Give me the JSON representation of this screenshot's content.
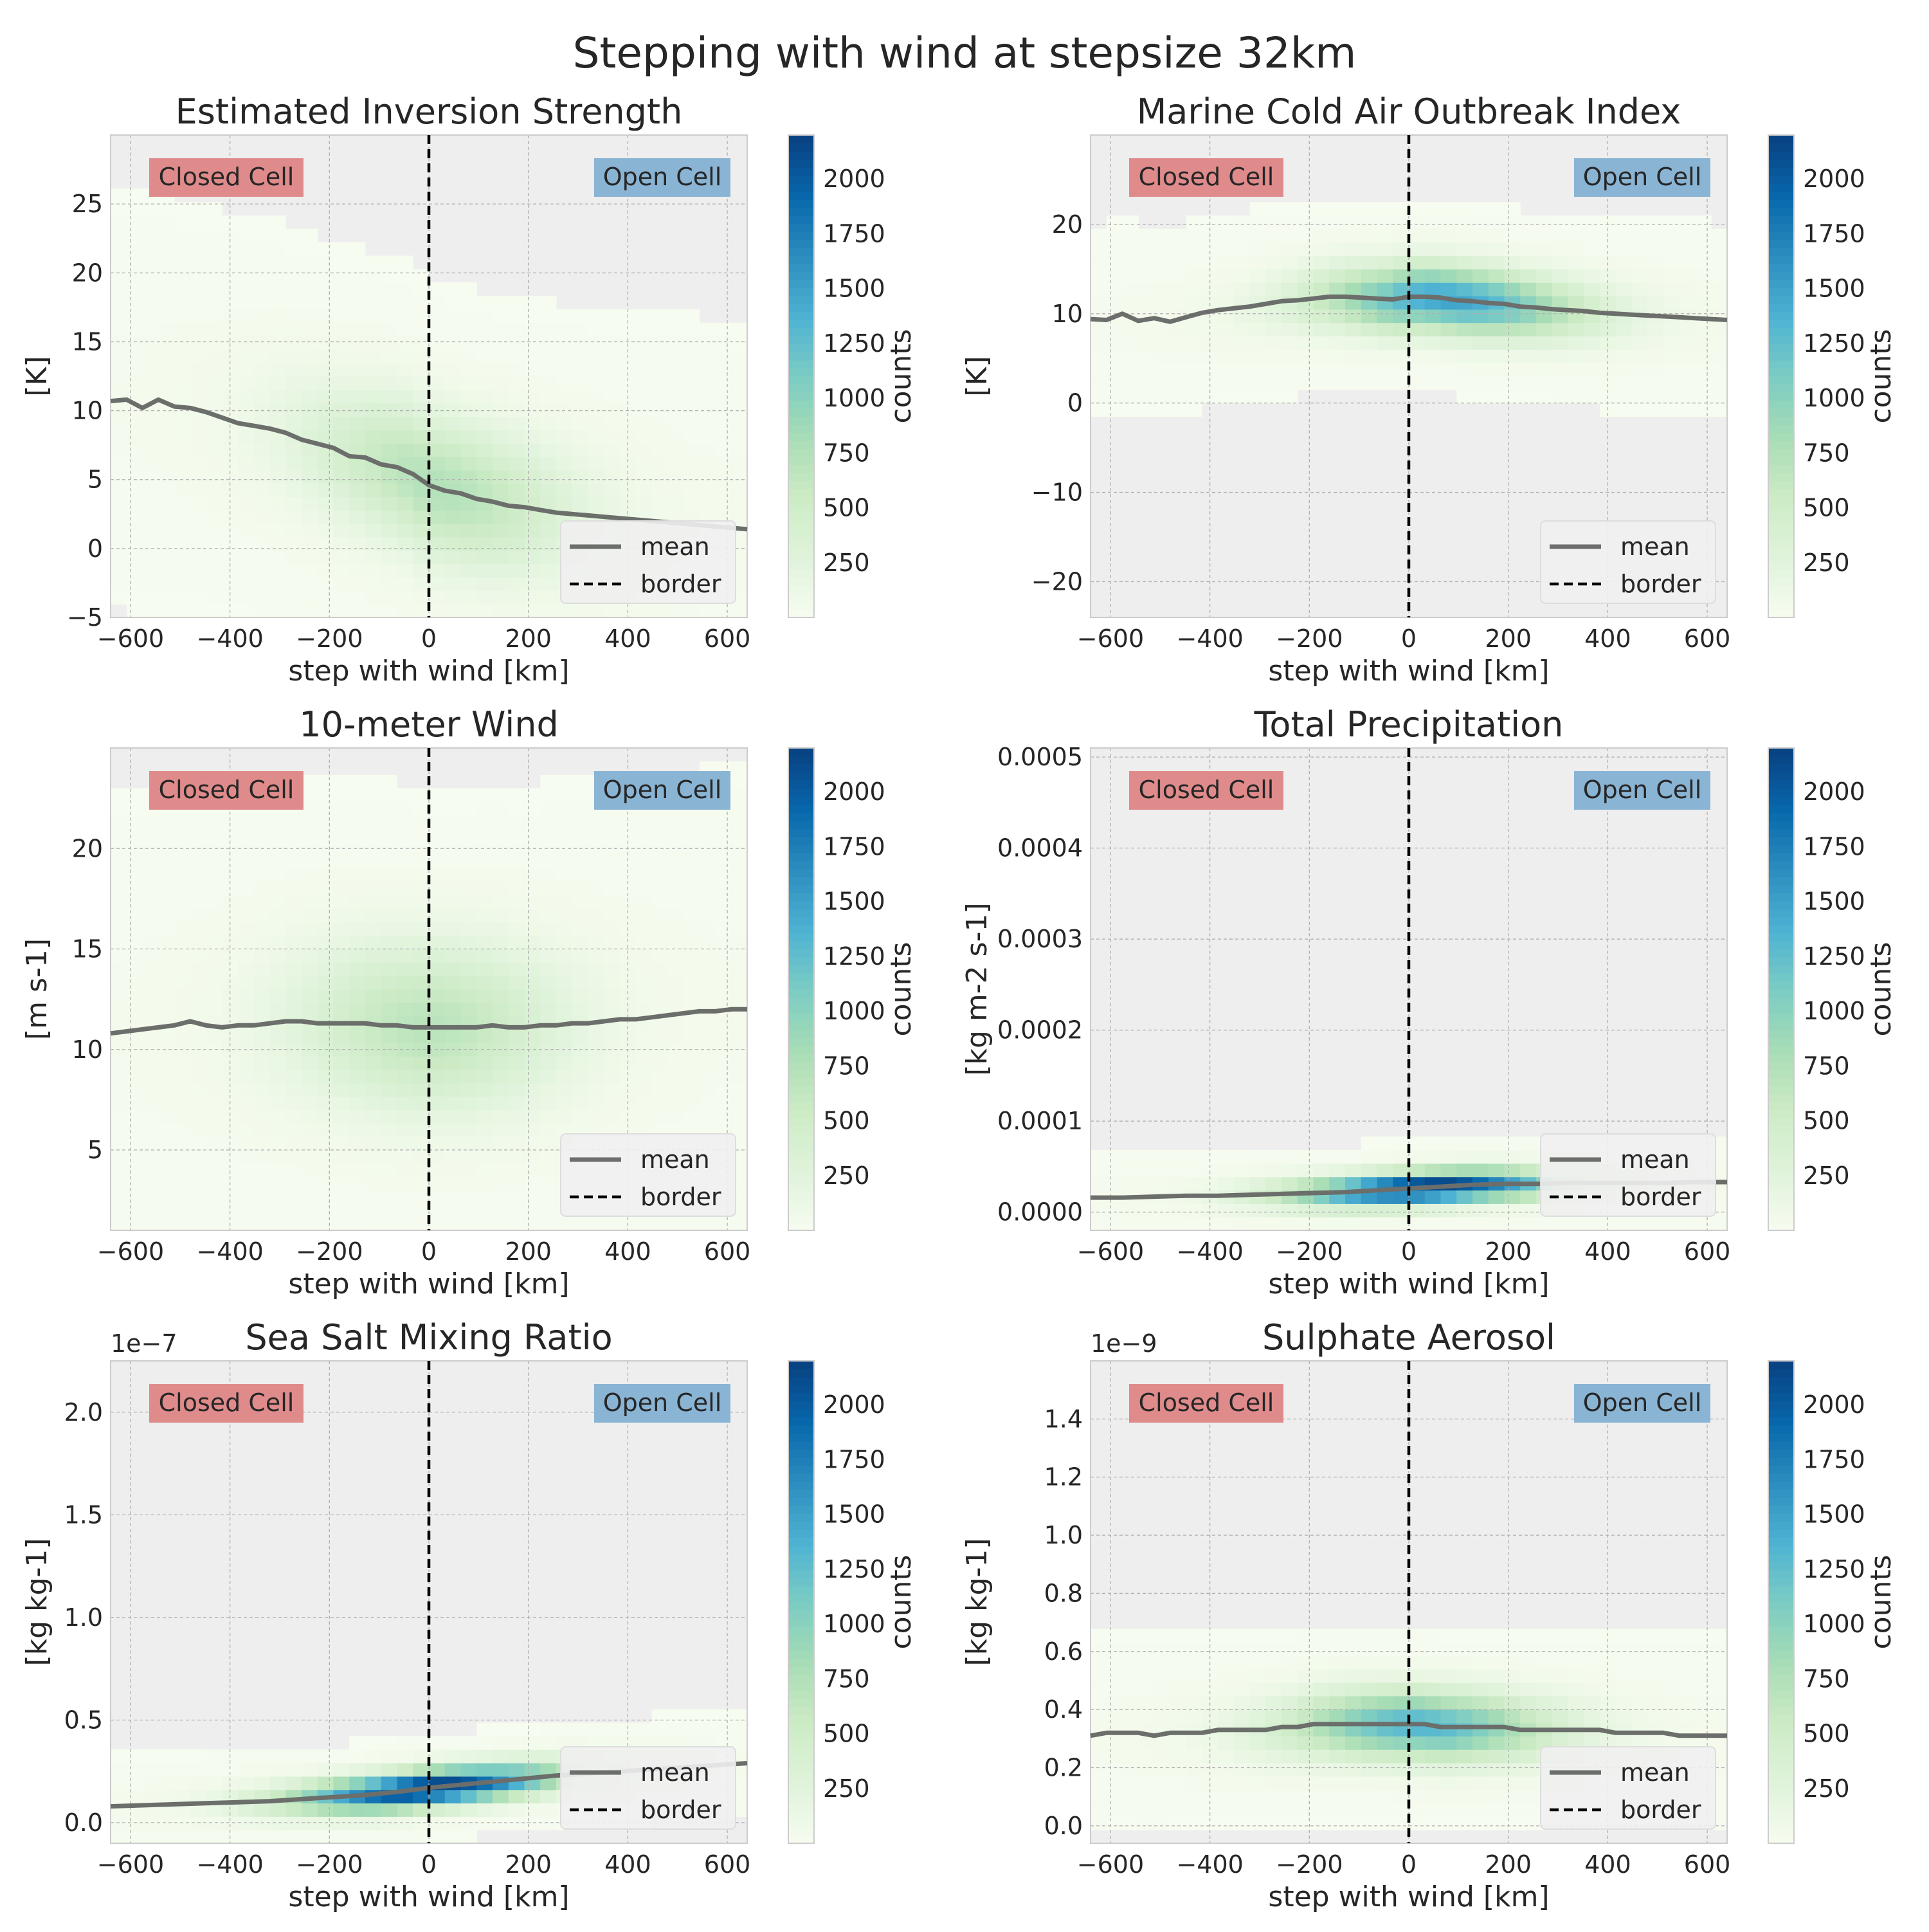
{
  "figure": {
    "suptitle": "Stepping with wind at stepsize 32km"
  },
  "labels": {
    "closed": "Closed Cell",
    "open": "Open Cell",
    "legend_mean": "mean",
    "legend_border": "border",
    "colorbar_label": "counts",
    "xlabel": "step with wind [km]"
  },
  "colors": {
    "closed_box": "#e08b8b",
    "open_box": "#8ab4d4",
    "mean_line": "#6b6e6b",
    "border_line": "#000000",
    "axes_bg": "#eeeeee",
    "colormap": "GnBu"
  },
  "colorbar": {
    "min": 0,
    "max": 2200,
    "ticks": [
      250,
      500,
      750,
      1000,
      1250,
      1500,
      1750,
      2000
    ]
  },
  "chart_data": [
    {
      "type": "heatmap",
      "title": "Estimated Inversion Strength",
      "ylabel": "[K]",
      "xlabel": "step with wind [km]",
      "xlim": [
        -640,
        640
      ],
      "ylim": [
        -5,
        30
      ],
      "xticks": [
        -600,
        -400,
        -200,
        0,
        200,
        400,
        600
      ],
      "yticks": [
        -5,
        0,
        5,
        10,
        15,
        20,
        25
      ],
      "ytick_labels": [
        "−5",
        "0",
        "5",
        "10",
        "15",
        "20",
        "25"
      ],
      "offset_label": "",
      "grid": true,
      "legend_position": "lower-right",
      "border_x": 0,
      "mean": {
        "x": [
          -640,
          -608,
          -576,
          -544,
          -512,
          -480,
          -448,
          -416,
          -384,
          -352,
          -320,
          -288,
          -256,
          -224,
          -192,
          -160,
          -128,
          -96,
          -64,
          -32,
          0,
          32,
          64,
          96,
          128,
          160,
          192,
          224,
          256,
          288,
          320,
          352,
          384,
          416,
          448,
          480,
          512,
          544,
          576,
          608,
          640
        ],
        "y": [
          10.7,
          10.8,
          10.2,
          10.8,
          10.3,
          10.2,
          9.9,
          9.5,
          9.1,
          8.9,
          8.7,
          8.4,
          7.9,
          7.6,
          7.3,
          6.7,
          6.6,
          6.1,
          5.9,
          5.4,
          4.6,
          4.2,
          4.0,
          3.6,
          3.4,
          3.1,
          3.0,
          2.8,
          2.6,
          2.5,
          2.4,
          2.3,
          2.2,
          2.1,
          2.0,
          1.9,
          1.8,
          1.7,
          1.6,
          1.5,
          1.4
        ]
      },
      "density": {
        "peak_x": 20,
        "peak_count": 700,
        "spread_y": 3.5
      }
    },
    {
      "type": "heatmap",
      "title": "Marine Cold Air Outbreak Index",
      "ylabel": "[K]",
      "xlabel": "step with wind [km]",
      "xlim": [
        -640,
        640
      ],
      "ylim": [
        -24,
        30
      ],
      "xticks": [
        -600,
        -400,
        -200,
        0,
        200,
        400,
        600
      ],
      "yticks": [
        -20,
        -10,
        0,
        10,
        20
      ],
      "ytick_labels": [
        "−20",
        "−10",
        "0",
        "10",
        "20"
      ],
      "offset_label": "",
      "grid": true,
      "legend_position": "lower-right",
      "border_x": 0,
      "mean": {
        "x": [
          -640,
          -608,
          -576,
          -544,
          -512,
          -480,
          -448,
          -416,
          -384,
          -352,
          -320,
          -288,
          -256,
          -224,
          -192,
          -160,
          -128,
          -96,
          -64,
          -32,
          0,
          32,
          64,
          96,
          128,
          160,
          192,
          224,
          256,
          288,
          320,
          352,
          384,
          416,
          448,
          480,
          512,
          544,
          576,
          608,
          640
        ],
        "y": [
          9.4,
          9.3,
          10.0,
          9.2,
          9.5,
          9.1,
          9.6,
          10.1,
          10.4,
          10.6,
          10.8,
          11.1,
          11.4,
          11.5,
          11.7,
          11.9,
          11.9,
          11.8,
          11.7,
          11.6,
          11.9,
          11.9,
          11.8,
          11.5,
          11.4,
          11.2,
          11.1,
          10.8,
          10.7,
          10.5,
          10.4,
          10.3,
          10.1,
          10.0,
          9.9,
          9.8,
          9.7,
          9.6,
          9.5,
          9.4,
          9.3
        ]
      },
      "density": {
        "peak_x": 80,
        "peak_count": 1450,
        "spread_y": 2.5
      }
    },
    {
      "type": "heatmap",
      "title": "10-meter Wind",
      "ylabel": "[m s-1]",
      "xlabel": "step with wind [km]",
      "xlim": [
        -640,
        640
      ],
      "ylim": [
        1,
        25
      ],
      "xticks": [
        -600,
        -400,
        -200,
        0,
        200,
        400,
        600
      ],
      "yticks": [
        5,
        10,
        15,
        20
      ],
      "ytick_labels": [
        "5",
        "10",
        "15",
        "20"
      ],
      "offset_label": "",
      "grid": true,
      "legend_position": "lower-right",
      "border_x": 0,
      "mean": {
        "x": [
          -640,
          -608,
          -576,
          -544,
          -512,
          -480,
          -448,
          -416,
          -384,
          -352,
          -320,
          -288,
          -256,
          -224,
          -192,
          -160,
          -128,
          -96,
          -64,
          -32,
          0,
          32,
          64,
          96,
          128,
          160,
          192,
          224,
          256,
          288,
          320,
          352,
          384,
          416,
          448,
          480,
          512,
          544,
          576,
          608,
          640
        ],
        "y": [
          10.8,
          10.9,
          11.0,
          11.1,
          11.2,
          11.4,
          11.2,
          11.1,
          11.2,
          11.2,
          11.3,
          11.4,
          11.4,
          11.3,
          11.3,
          11.3,
          11.3,
          11.2,
          11.2,
          11.1,
          11.1,
          11.1,
          11.1,
          11.1,
          11.2,
          11.1,
          11.1,
          11.2,
          11.2,
          11.3,
          11.3,
          11.4,
          11.5,
          11.5,
          11.6,
          11.7,
          11.8,
          11.9,
          11.9,
          12.0,
          12.0
        ]
      },
      "density": {
        "peak_x": 0,
        "peak_count": 650,
        "spread_y": 2.8
      }
    },
    {
      "type": "heatmap",
      "title": "Total Precipitation",
      "ylabel": "[kg m-2 s-1]",
      "xlabel": "step with wind [km]",
      "xlim": [
        -640,
        640
      ],
      "ylim": [
        -2e-05,
        0.00051
      ],
      "xticks": [
        -600,
        -400,
        -200,
        0,
        200,
        400,
        600
      ],
      "yticks": [
        0,
        0.0001,
        0.0002,
        0.0003,
        0.0004,
        0.0005
      ],
      "ytick_labels": [
        "0.0000",
        "0.0001",
        "0.0002",
        "0.0003",
        "0.0004",
        "0.0005"
      ],
      "offset_label": "",
      "grid": true,
      "legend_position": "lower-right",
      "border_x": 0,
      "mean": {
        "x": [
          -640,
          -576,
          -512,
          -448,
          -384,
          -320,
          -256,
          -192,
          -128,
          -64,
          0,
          64,
          128,
          192,
          256,
          320,
          384,
          448,
          512,
          576,
          640
        ],
        "y": [
          1.6e-05,
          1.6e-05,
          1.7e-05,
          1.8e-05,
          1.8e-05,
          1.9e-05,
          2e-05,
          2.1e-05,
          2.2e-05,
          2.4e-05,
          2.6e-05,
          2.8e-05,
          3e-05,
          3.1e-05,
          3.1e-05,
          3.2e-05,
          3.2e-05,
          3.2e-05,
          3.2e-05,
          3.3e-05,
          3.3e-05
        ]
      },
      "density": {
        "peak_x": 40,
        "peak_count": 2200,
        "spread_y": 1.2e-05
      }
    },
    {
      "type": "heatmap",
      "title": "Sea Salt Mixing Ratio",
      "ylabel": "[kg kg-1]",
      "xlabel": "step with wind [km]",
      "xlim": [
        -640,
        640
      ],
      "ylim": [
        -0.1,
        2.25
      ],
      "xticks": [
        -600,
        -400,
        -200,
        0,
        200,
        400,
        600
      ],
      "yticks": [
        0,
        0.5,
        1.0,
        1.5,
        2.0
      ],
      "ytick_labels": [
        "0.0",
        "0.5",
        "1.0",
        "1.5",
        "2.0"
      ],
      "offset_label": "1e−7",
      "grid": true,
      "legend_position": "lower-right",
      "border_x": 0,
      "mean": {
        "x": [
          -640,
          -576,
          -512,
          -448,
          -384,
          -320,
          -256,
          -192,
          -128,
          -64,
          0,
          64,
          128,
          192,
          256,
          320,
          384,
          448,
          512,
          576,
          640
        ],
        "y": [
          0.08,
          0.085,
          0.09,
          0.095,
          0.1,
          0.105,
          0.115,
          0.125,
          0.135,
          0.15,
          0.17,
          0.185,
          0.2,
          0.215,
          0.23,
          0.24,
          0.25,
          0.26,
          0.27,
          0.28,
          0.29
        ]
      },
      "density": {
        "peak_x": 0,
        "peak_count": 2200,
        "spread_y": 0.06
      }
    },
    {
      "type": "heatmap",
      "title": "Sulphate Aerosol",
      "ylabel": "[kg kg-1]",
      "xlabel": "step with wind [km]",
      "xlim": [
        -640,
        640
      ],
      "ylim": [
        -0.06,
        1.6
      ],
      "xticks": [
        -600,
        -400,
        -200,
        0,
        200,
        400,
        600
      ],
      "yticks": [
        0,
        0.2,
        0.4,
        0.6,
        0.8,
        1.0,
        1.2,
        1.4
      ],
      "ytick_labels": [
        "0.0",
        "0.2",
        "0.4",
        "0.6",
        "0.8",
        "1.0",
        "1.2",
        "1.4"
      ],
      "offset_label": "1e−9",
      "grid": true,
      "legend_position": "lower-right",
      "border_x": 0,
      "mean": {
        "x": [
          -640,
          -608,
          -576,
          -544,
          -512,
          -480,
          -448,
          -416,
          -384,
          -352,
          -320,
          -288,
          -256,
          -224,
          -192,
          -160,
          -128,
          -96,
          -64,
          -32,
          0,
          32,
          64,
          96,
          128,
          160,
          192,
          224,
          256,
          288,
          320,
          352,
          384,
          416,
          448,
          480,
          512,
          544,
          576,
          608,
          640
        ],
        "y": [
          0.31,
          0.32,
          0.32,
          0.32,
          0.31,
          0.32,
          0.32,
          0.32,
          0.33,
          0.33,
          0.33,
          0.33,
          0.34,
          0.34,
          0.35,
          0.35,
          0.35,
          0.35,
          0.35,
          0.35,
          0.35,
          0.35,
          0.34,
          0.34,
          0.34,
          0.34,
          0.34,
          0.33,
          0.33,
          0.33,
          0.33,
          0.33,
          0.33,
          0.32,
          0.32,
          0.32,
          0.32,
          0.31,
          0.31,
          0.31,
          0.31
        ]
      },
      "density": {
        "peak_x": 20,
        "peak_count": 1300,
        "spread_y": 0.08
      }
    }
  ]
}
